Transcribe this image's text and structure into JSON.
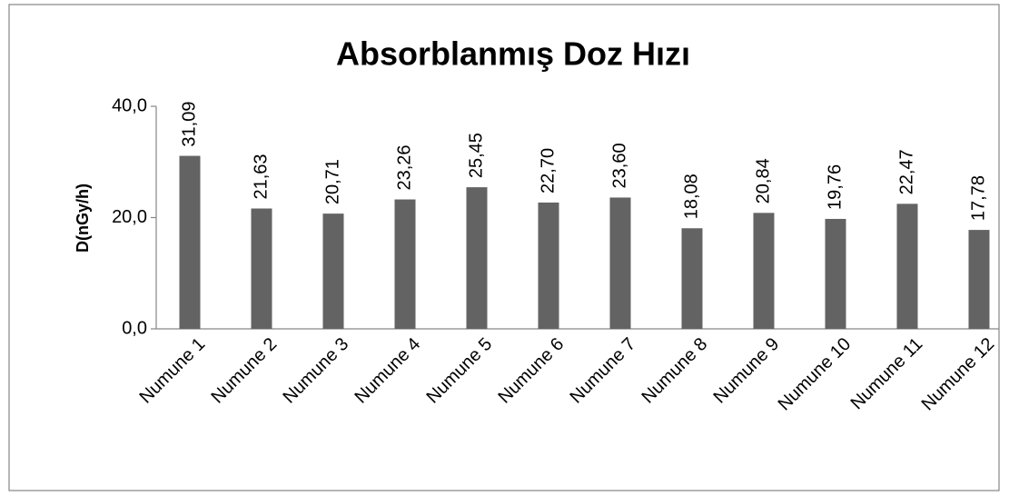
{
  "chart_data": {
    "type": "bar",
    "title": "Absorblanmış Doz Hızı",
    "y_label": "D(nGy/h)",
    "categories": [
      "Numune 1",
      "Numune 2",
      "Numune 3",
      "Numune 4",
      "Numune 5",
      "Numune 6",
      "Numune 7",
      "Numune 8",
      "Numune 9",
      "Numune 10",
      "Numune 11",
      "Numune 12"
    ],
    "values": [
      31.09,
      21.63,
      20.71,
      23.26,
      25.45,
      22.7,
      23.6,
      18.08,
      20.84,
      19.76,
      22.47,
      17.78
    ],
    "value_labels": [
      "31,09",
      "21,63",
      "20,71",
      "23,26",
      "25,45",
      "22,70",
      "23,60",
      "18,08",
      "20,84",
      "19,76",
      "22,47",
      "17,78"
    ],
    "color": "#636363",
    "ylim": [
      0,
      40
    ],
    "yticks": [
      {
        "value": 0,
        "label": "0,0"
      },
      {
        "value": 20,
        "label": "20,0"
      },
      {
        "value": 40,
        "label": "40,0"
      }
    ],
    "grid": false
  }
}
